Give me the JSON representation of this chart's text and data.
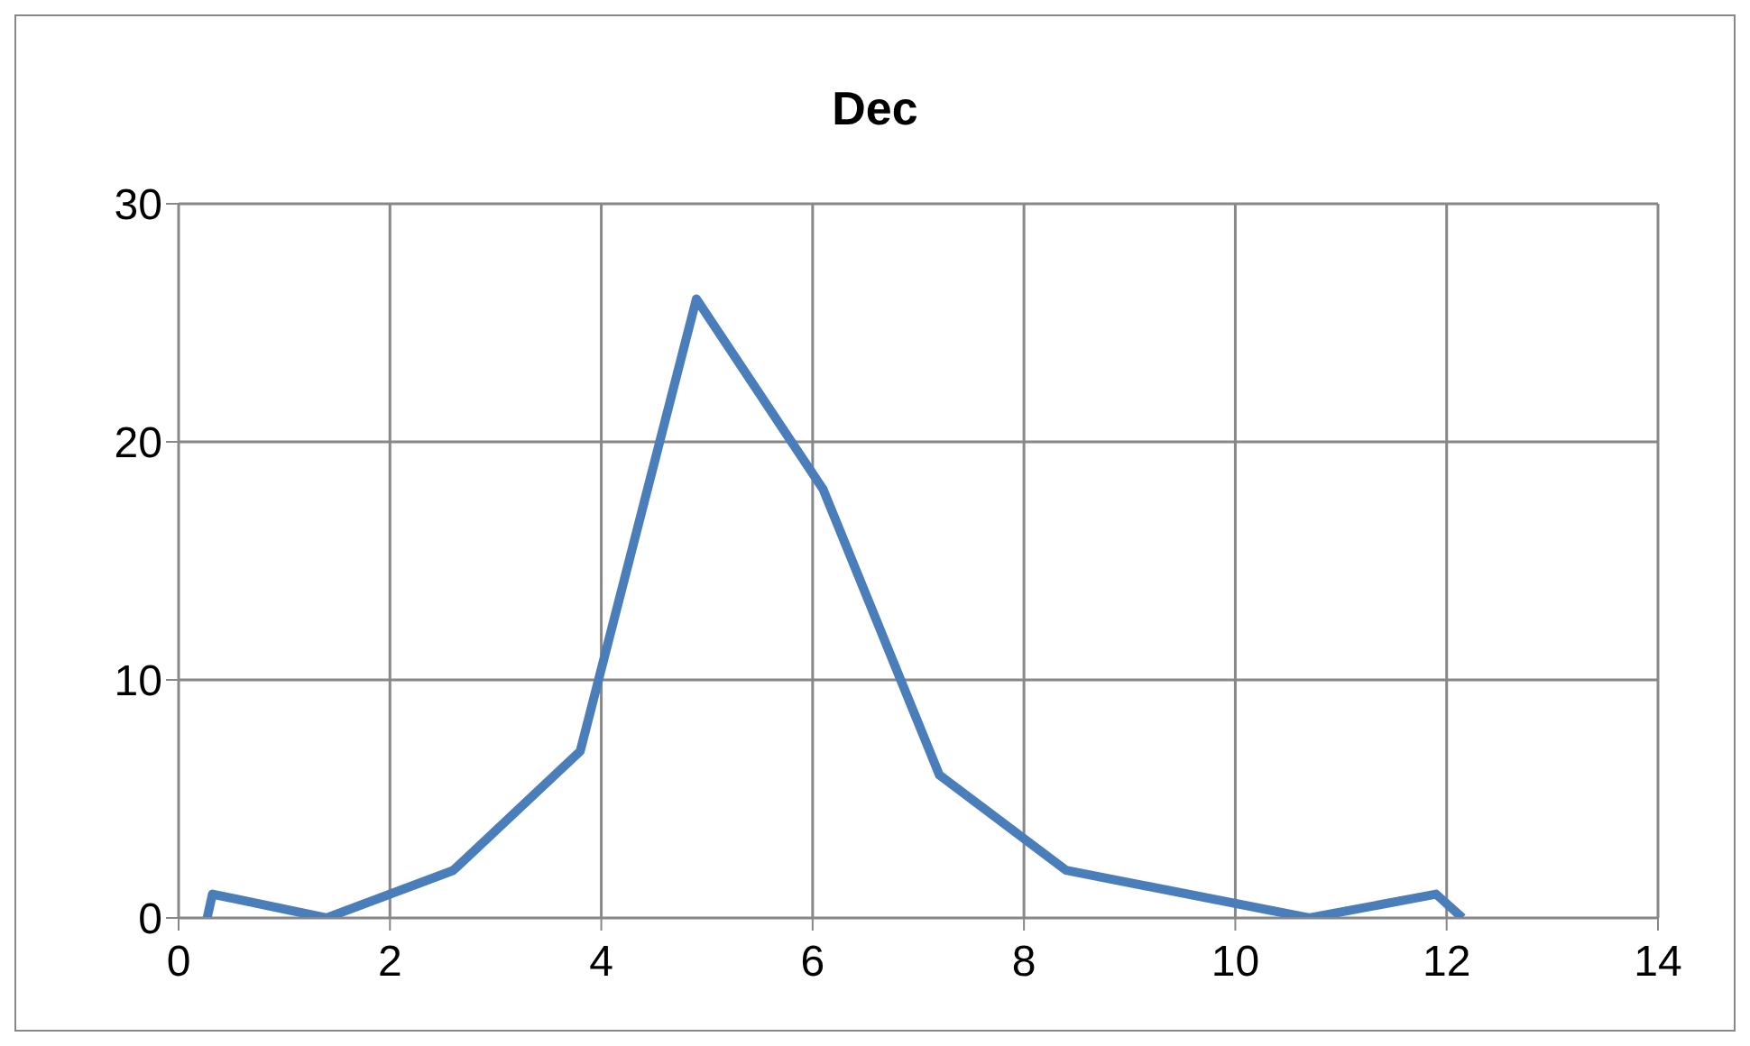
{
  "chart_data": {
    "type": "line",
    "title": "Dec",
    "x": [
      0.27,
      0.32,
      1.4,
      2.6,
      3.8,
      4.9,
      6.1,
      7.2,
      8.4,
      10.7,
      11.9,
      12.15
    ],
    "series": [
      {
        "color": "#4a7ebb",
        "values": [
          0,
          1,
          0,
          2,
          7,
          26,
          18,
          6,
          2,
          0,
          1,
          0
        ]
      }
    ],
    "xlim": [
      0,
      14
    ],
    "xticks": [
      0,
      2,
      4,
      6,
      8,
      10,
      12,
      14
    ],
    "ylim": [
      0,
      30
    ],
    "yticks": [
      0,
      10,
      20,
      30
    ],
    "grid": true,
    "legend": false,
    "marker": "none",
    "line_style": "solid"
  }
}
